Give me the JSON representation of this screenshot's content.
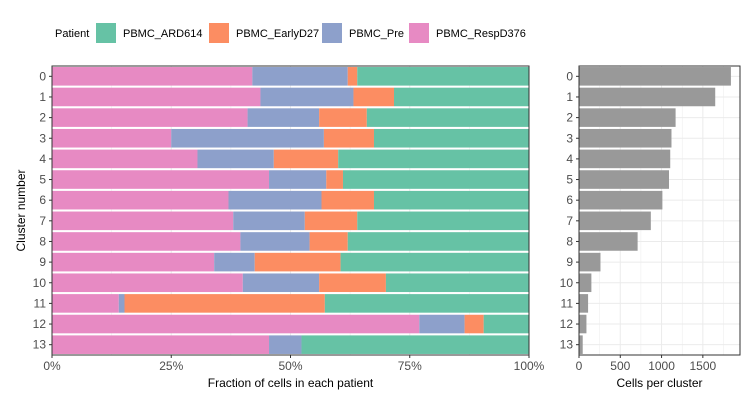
{
  "legend": {
    "title": "Patient",
    "items": [
      {
        "label": "PBMC_ARD614",
        "color": "#66C2A5"
      },
      {
        "label": "PBMC_EarlyD27",
        "color": "#FC8D62"
      },
      {
        "label": "PBMC_Pre",
        "color": "#8DA0CB"
      },
      {
        "label": "PBMC_RespD376",
        "color": "#E78AC3"
      }
    ]
  },
  "chart_data": [
    {
      "type": "bar",
      "orientation": "horizontal",
      "stacked": true,
      "xlabel": "Fraction of cells in each patient",
      "ylabel": "Cluster number",
      "xlim": [
        0,
        1
      ],
      "xticks": [
        0,
        0.25,
        0.5,
        0.75,
        1
      ],
      "xtick_labels": [
        "0%",
        "25%",
        "50%",
        "75%",
        "100%"
      ],
      "grid": true,
      "legend_position": "top",
      "categories": [
        "0",
        "1",
        "2",
        "3",
        "4",
        "5",
        "6",
        "7",
        "8",
        "9",
        "10",
        "11",
        "12",
        "13"
      ],
      "series": [
        {
          "name": "PBMC_RespD376",
          "color": "#E78AC3",
          "values": [
            0.42,
            0.437,
            0.41,
            0.25,
            0.305,
            0.455,
            0.37,
            0.38,
            0.395,
            0.34,
            0.4,
            0.14,
            0.77,
            0.455
          ]
        },
        {
          "name": "PBMC_Pre",
          "color": "#8DA0CB",
          "values": [
            0.2,
            0.195,
            0.15,
            0.32,
            0.16,
            0.12,
            0.195,
            0.15,
            0.145,
            0.085,
            0.16,
            0.012,
            0.095,
            0.068
          ]
        },
        {
          "name": "PBMC_EarlyD27",
          "color": "#FC8D62",
          "values": [
            0.02,
            0.085,
            0.1,
            0.105,
            0.135,
            0.035,
            0.11,
            0.11,
            0.08,
            0.18,
            0.14,
            0.42,
            0.04,
            0.0
          ]
        },
        {
          "name": "PBMC_ARD614",
          "color": "#66C2A5",
          "values": [
            0.36,
            0.283,
            0.34,
            0.325,
            0.4,
            0.39,
            0.325,
            0.36,
            0.38,
            0.395,
            0.3,
            0.428,
            0.095,
            0.477
          ]
        }
      ]
    },
    {
      "type": "bar",
      "orientation": "horizontal",
      "xlabel": "Cells per cluster",
      "xlim": [
        0,
        1950
      ],
      "xticks": [
        0,
        500,
        1000,
        1500
      ],
      "xtick_labels": [
        "0",
        "500",
        "1000",
        "1500"
      ],
      "grid": true,
      "bar_color": "#999999",
      "categories": [
        "0",
        "1",
        "2",
        "3",
        "4",
        "5",
        "6",
        "7",
        "8",
        "9",
        "10",
        "11",
        "12",
        "13"
      ],
      "values": [
        1840,
        1650,
        1170,
        1120,
        1105,
        1090,
        1010,
        870,
        710,
        260,
        150,
        110,
        90,
        45
      ]
    }
  ]
}
